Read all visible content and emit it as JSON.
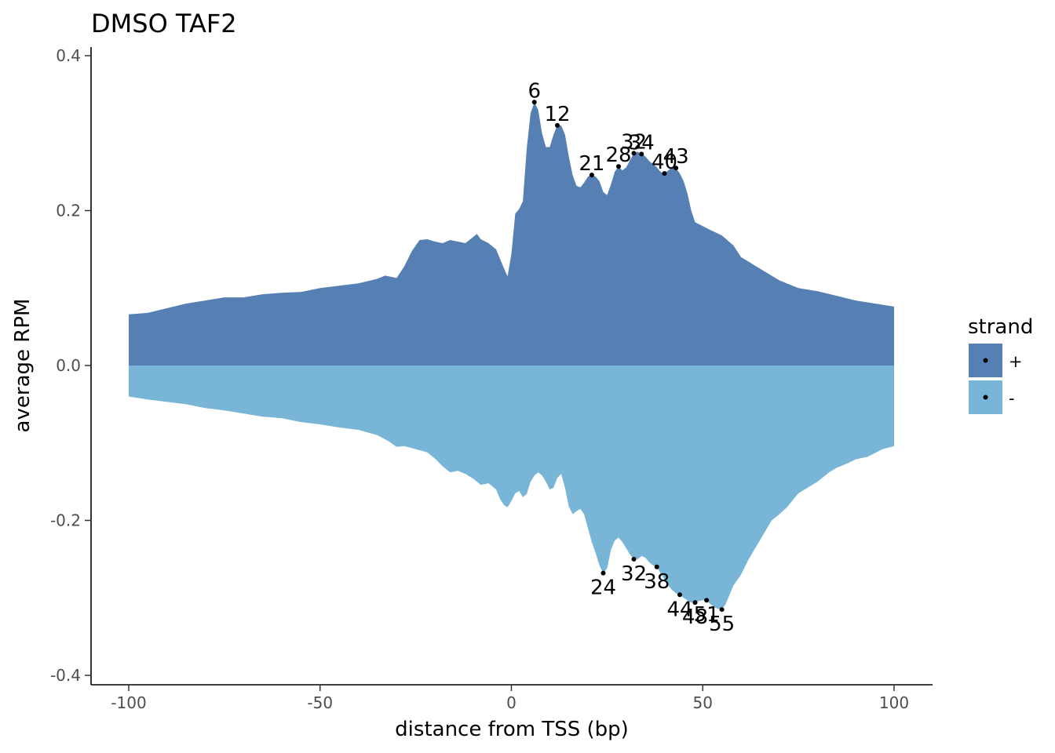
{
  "chart_data": {
    "type": "area",
    "title": "DMSO TAF2",
    "xlabel": "distance from TSS (bp)",
    "ylabel": "average RPM",
    "xlim": [
      -110,
      110
    ],
    "ylim": [
      -0.41,
      0.41
    ],
    "x_ticks": [
      {
        "value": -100,
        "label": "-100"
      },
      {
        "value": -50,
        "label": "-50"
      },
      {
        "value": 0,
        "label": "0"
      },
      {
        "value": 50,
        "label": "50"
      },
      {
        "value": 100,
        "label": "100"
      }
    ],
    "y_ticks": [
      {
        "value": 0.4,
        "label": "0.4"
      },
      {
        "value": 0.2,
        "label": "0.2"
      },
      {
        "value": 0.0,
        "label": "0.0"
      },
      {
        "value": -0.2,
        "label": "-0.2"
      },
      {
        "value": -0.4,
        "label": "-0.4"
      }
    ],
    "grid": false,
    "legend": {
      "title": "strand",
      "position": "right"
    },
    "series": [
      {
        "name": "+",
        "color": "#5680b3",
        "points": [
          [
            -100,
            0.066
          ],
          [
            -95,
            0.068
          ],
          [
            -90,
            0.074
          ],
          [
            -85,
            0.08
          ],
          [
            -80,
            0.084
          ],
          [
            -75,
            0.088
          ],
          [
            -70,
            0.088
          ],
          [
            -65,
            0.092
          ],
          [
            -60,
            0.094
          ],
          [
            -55,
            0.095
          ],
          [
            -50,
            0.1
          ],
          [
            -45,
            0.103
          ],
          [
            -40,
            0.106
          ],
          [
            -35,
            0.112
          ],
          [
            -33,
            0.116
          ],
          [
            -30,
            0.113
          ],
          [
            -28,
            0.128
          ],
          [
            -26,
            0.148
          ],
          [
            -24,
            0.162
          ],
          [
            -22,
            0.163
          ],
          [
            -20,
            0.16
          ],
          [
            -18,
            0.158
          ],
          [
            -16,
            0.162
          ],
          [
            -14,
            0.16
          ],
          [
            -12,
            0.158
          ],
          [
            -10,
            0.166
          ],
          [
            -9,
            0.17
          ],
          [
            -8,
            0.163
          ],
          [
            -6,
            0.158
          ],
          [
            -4,
            0.15
          ],
          [
            -3,
            0.138
          ],
          [
            -2,
            0.126
          ],
          [
            -1,
            0.115
          ],
          [
            0,
            0.144
          ],
          [
            1,
            0.196
          ],
          [
            2,
            0.202
          ],
          [
            3,
            0.212
          ],
          [
            4,
            0.28
          ],
          [
            5,
            0.326
          ],
          [
            6,
            0.34
          ],
          [
            7,
            0.33
          ],
          [
            8,
            0.3
          ],
          [
            9,
            0.282
          ],
          [
            10,
            0.282
          ],
          [
            11,
            0.298
          ],
          [
            12,
            0.31
          ],
          [
            13,
            0.31
          ],
          [
            14,
            0.298
          ],
          [
            15,
            0.27
          ],
          [
            16,
            0.246
          ],
          [
            17,
            0.232
          ],
          [
            18,
            0.23
          ],
          [
            19,
            0.236
          ],
          [
            20,
            0.244
          ],
          [
            21,
            0.246
          ],
          [
            22,
            0.244
          ],
          [
            23,
            0.238
          ],
          [
            24,
            0.224
          ],
          [
            25,
            0.22
          ],
          [
            26,
            0.234
          ],
          [
            27,
            0.25
          ],
          [
            28,
            0.257
          ],
          [
            29,
            0.252
          ],
          [
            30,
            0.256
          ],
          [
            31,
            0.265
          ],
          [
            32,
            0.274
          ],
          [
            33,
            0.276
          ],
          [
            34,
            0.273
          ],
          [
            35,
            0.27
          ],
          [
            36,
            0.264
          ],
          [
            37,
            0.26
          ],
          [
            38,
            0.256
          ],
          [
            39,
            0.25
          ],
          [
            40,
            0.248
          ],
          [
            41,
            0.252
          ],
          [
            42,
            0.256
          ],
          [
            43,
            0.255
          ],
          [
            44,
            0.248
          ],
          [
            45,
            0.238
          ],
          [
            46,
            0.222
          ],
          [
            47,
            0.2
          ],
          [
            48,
            0.185
          ],
          [
            50,
            0.18
          ],
          [
            52,
            0.175
          ],
          [
            55,
            0.168
          ],
          [
            58,
            0.155
          ],
          [
            60,
            0.14
          ],
          [
            65,
            0.125
          ],
          [
            70,
            0.11
          ],
          [
            75,
            0.1
          ],
          [
            80,
            0.096
          ],
          [
            85,
            0.09
          ],
          [
            90,
            0.084
          ],
          [
            95,
            0.08
          ],
          [
            100,
            0.076
          ]
        ]
      },
      {
        "name": "-",
        "color": "#78b5d6",
        "points": [
          [
            -100,
            -0.04
          ],
          [
            -95,
            -0.044
          ],
          [
            -90,
            -0.047
          ],
          [
            -85,
            -0.05
          ],
          [
            -80,
            -0.055
          ],
          [
            -75,
            -0.058
          ],
          [
            -70,
            -0.062
          ],
          [
            -65,
            -0.066
          ],
          [
            -60,
            -0.068
          ],
          [
            -55,
            -0.073
          ],
          [
            -50,
            -0.076
          ],
          [
            -45,
            -0.08
          ],
          [
            -40,
            -0.083
          ],
          [
            -35,
            -0.09
          ],
          [
            -32,
            -0.098
          ],
          [
            -30,
            -0.105
          ],
          [
            -28,
            -0.104
          ],
          [
            -25,
            -0.108
          ],
          [
            -22,
            -0.112
          ],
          [
            -20,
            -0.12
          ],
          [
            -18,
            -0.13
          ],
          [
            -16,
            -0.138
          ],
          [
            -14,
            -0.136
          ],
          [
            -12,
            -0.14
          ],
          [
            -10,
            -0.146
          ],
          [
            -8,
            -0.154
          ],
          [
            -6,
            -0.152
          ],
          [
            -4,
            -0.16
          ],
          [
            -3,
            -0.172
          ],
          [
            -2,
            -0.18
          ],
          [
            -1,
            -0.183
          ],
          [
            0,
            -0.175
          ],
          [
            1,
            -0.165
          ],
          [
            2,
            -0.162
          ],
          [
            3,
            -0.17
          ],
          [
            4,
            -0.166
          ],
          [
            5,
            -0.15
          ],
          [
            6,
            -0.142
          ],
          [
            7,
            -0.138
          ],
          [
            8,
            -0.142
          ],
          [
            9,
            -0.15
          ],
          [
            10,
            -0.16
          ],
          [
            11,
            -0.158
          ],
          [
            12,
            -0.145
          ],
          [
            13,
            -0.14
          ],
          [
            14,
            -0.158
          ],
          [
            15,
            -0.182
          ],
          [
            16,
            -0.192
          ],
          [
            17,
            -0.188
          ],
          [
            18,
            -0.185
          ],
          [
            19,
            -0.192
          ],
          [
            20,
            -0.21
          ],
          [
            21,
            -0.228
          ],
          [
            22,
            -0.242
          ],
          [
            23,
            -0.258
          ],
          [
            24,
            -0.268
          ],
          [
            25,
            -0.262
          ],
          [
            26,
            -0.238
          ],
          [
            27,
            -0.226
          ],
          [
            28,
            -0.222
          ],
          [
            29,
            -0.228
          ],
          [
            30,
            -0.236
          ],
          [
            31,
            -0.244
          ],
          [
            32,
            -0.25
          ],
          [
            33,
            -0.25
          ],
          [
            34,
            -0.246
          ],
          [
            35,
            -0.248
          ],
          [
            36,
            -0.254
          ],
          [
            37,
            -0.258
          ],
          [
            38,
            -0.26
          ],
          [
            39,
            -0.268
          ],
          [
            40,
            -0.276
          ],
          [
            41,
            -0.284
          ],
          [
            42,
            -0.29
          ],
          [
            43,
            -0.294
          ],
          [
            44,
            -0.296
          ],
          [
            45,
            -0.3
          ],
          [
            46,
            -0.303
          ],
          [
            47,
            -0.306
          ],
          [
            48,
            -0.306
          ],
          [
            49,
            -0.304
          ],
          [
            50,
            -0.303
          ],
          [
            51,
            -0.303
          ],
          [
            52,
            -0.308
          ],
          [
            53,
            -0.312
          ],
          [
            54,
            -0.314
          ],
          [
            55,
            -0.315
          ],
          [
            56,
            -0.308
          ],
          [
            57,
            -0.296
          ],
          [
            58,
            -0.284
          ],
          [
            60,
            -0.27
          ],
          [
            62,
            -0.25
          ],
          [
            65,
            -0.225
          ],
          [
            68,
            -0.2
          ],
          [
            70,
            -0.192
          ],
          [
            72,
            -0.183
          ],
          [
            75,
            -0.165
          ],
          [
            78,
            -0.156
          ],
          [
            80,
            -0.15
          ],
          [
            83,
            -0.138
          ],
          [
            85,
            -0.132
          ],
          [
            88,
            -0.126
          ],
          [
            90,
            -0.121
          ],
          [
            93,
            -0.118
          ],
          [
            95,
            -0.113
          ],
          [
            97,
            -0.108
          ],
          [
            100,
            -0.104
          ]
        ]
      }
    ],
    "peak_labels": [
      {
        "label": "6",
        "x": 6,
        "y": 0.34
      },
      {
        "label": "12",
        "x": 12,
        "y": 0.31
      },
      {
        "label": "21",
        "x": 21,
        "y": 0.246
      },
      {
        "label": "28",
        "x": 28,
        "y": 0.257
      },
      {
        "label": "32",
        "x": 32,
        "y": 0.274
      },
      {
        "label": "34",
        "x": 34,
        "y": 0.273
      },
      {
        "label": "40",
        "x": 40,
        "y": 0.248
      },
      {
        "label": "43",
        "x": 43,
        "y": 0.255
      },
      {
        "label": "24",
        "x": 24,
        "y": -0.268
      },
      {
        "label": "32",
        "x": 32,
        "y": -0.25
      },
      {
        "label": "38",
        "x": 38,
        "y": -0.26
      },
      {
        "label": "44",
        "x": 44,
        "y": -0.296
      },
      {
        "label": "48",
        "x": 48,
        "y": -0.306
      },
      {
        "label": "51",
        "x": 51,
        "y": -0.303
      },
      {
        "label": "55",
        "x": 55,
        "y": -0.315
      }
    ]
  }
}
